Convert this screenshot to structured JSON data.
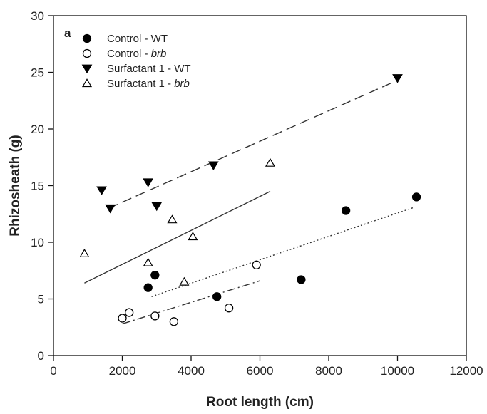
{
  "chart_data": {
    "type": "scatter",
    "panel_label": "a",
    "xlabel": "Root length (cm)",
    "ylabel": "Rhizosheath (g)",
    "xlim": [
      0,
      12000
    ],
    "ylim": [
      0,
      30
    ],
    "x_ticks": [
      "0",
      "2000",
      "4000",
      "6000",
      "8000",
      "10000",
      "12000"
    ],
    "y_ticks": [
      "0",
      "5",
      "10",
      "15",
      "20",
      "25",
      "30"
    ],
    "x_tick_values": [
      0,
      2000,
      4000,
      6000,
      8000,
      10000,
      12000
    ],
    "y_tick_values": [
      0,
      5,
      10,
      15,
      20,
      25,
      30
    ],
    "grid": false,
    "legend_position": "top-left",
    "series": [
      {
        "name": "Control - WT",
        "name_parts": [
          {
            "text": "Control - WT",
            "italic": false
          }
        ],
        "marker": "filled-circle",
        "points": [
          [
            2750,
            6.0
          ],
          [
            2950,
            7.1
          ],
          [
            4750,
            5.2
          ],
          [
            7200,
            6.7
          ],
          [
            8500,
            12.8
          ],
          [
            10550,
            14.0
          ]
        ],
        "fit_line": {
          "style": "dotted",
          "x": [
            2850,
            10500
          ],
          "y": [
            5.2,
            13.1
          ]
        }
      },
      {
        "name": "Control - brb",
        "name_parts": [
          {
            "text": "Control - ",
            "italic": false
          },
          {
            "text": "brb",
            "italic": true
          }
        ],
        "marker": "open-circle",
        "points": [
          [
            2000,
            3.3
          ],
          [
            2200,
            3.8
          ],
          [
            2950,
            3.5
          ],
          [
            3500,
            3.0
          ],
          [
            5100,
            4.2
          ],
          [
            5900,
            8.0
          ]
        ],
        "fit_line": {
          "style": "dash-dot",
          "x": [
            2000,
            6000
          ],
          "y": [
            2.8,
            6.6
          ]
        }
      },
      {
        "name": "Surfactant 1 - WT",
        "name_parts": [
          {
            "text": "Surfactant 1 - WT",
            "italic": false
          }
        ],
        "marker": "filled-triangle-down",
        "points": [
          [
            1400,
            14.6
          ],
          [
            1650,
            13.0
          ],
          [
            2750,
            15.3
          ],
          [
            3000,
            13.2
          ],
          [
            4650,
            16.8
          ],
          [
            10000,
            24.5
          ]
        ],
        "fit_line": {
          "style": "dashed",
          "x": [
            1600,
            10000
          ],
          "y": [
            13.0,
            24.3
          ]
        }
      },
      {
        "name": "Surfactant 1 - brb",
        "name_parts": [
          {
            "text": "Surfactant 1 - ",
            "italic": false
          },
          {
            "text": "brb",
            "italic": true
          }
        ],
        "marker": "open-triangle-up",
        "points": [
          [
            900,
            9.0
          ],
          [
            2750,
            8.2
          ],
          [
            3450,
            12.0
          ],
          [
            3800,
            6.5
          ],
          [
            4050,
            10.5
          ],
          [
            6300,
            17.0
          ]
        ],
        "fit_line": {
          "style": "solid",
          "x": [
            900,
            6300
          ],
          "y": [
            6.4,
            14.5
          ]
        }
      }
    ]
  }
}
